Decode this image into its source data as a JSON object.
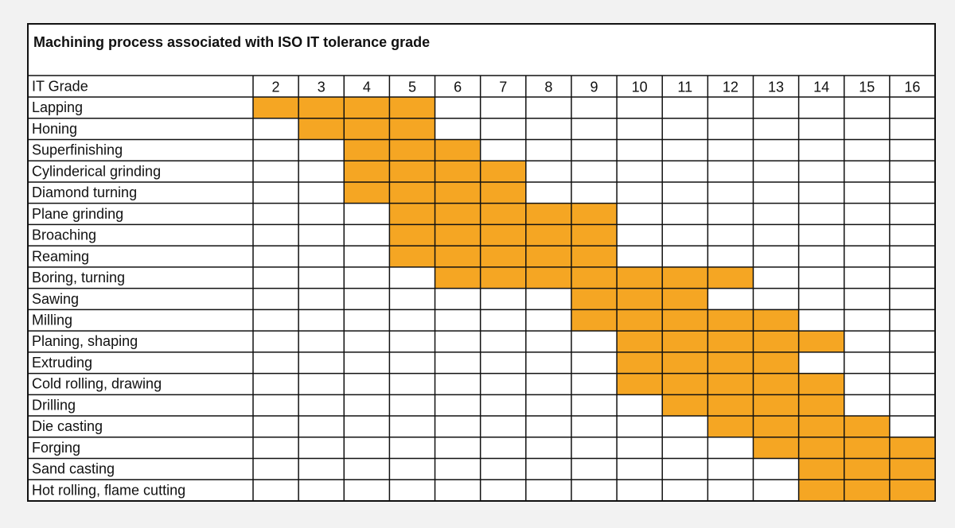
{
  "title": "Machining process associated with ISO IT tolerance grade",
  "table": {
    "header": "IT Grade",
    "grades": [
      2,
      3,
      4,
      5,
      6,
      7,
      8,
      9,
      10,
      11,
      12,
      13,
      14,
      15,
      16
    ],
    "rows": [
      {
        "process": "Lapping",
        "range": [
          2,
          5
        ]
      },
      {
        "process": "Honing",
        "range": [
          3,
          5
        ]
      },
      {
        "process": "Superfinishing",
        "range": [
          4,
          6
        ]
      },
      {
        "process": "Cylinderical grinding",
        "range": [
          4,
          7
        ]
      },
      {
        "process": "Diamond turning",
        "range": [
          4,
          7
        ]
      },
      {
        "process": "Plane grinding",
        "range": [
          5,
          9
        ]
      },
      {
        "process": "Broaching",
        "range": [
          5,
          9
        ]
      },
      {
        "process": "Reaming",
        "range": [
          5,
          9
        ]
      },
      {
        "process": "Boring, turning",
        "range": [
          6,
          12
        ]
      },
      {
        "process": "Sawing",
        "range": [
          9,
          11
        ]
      },
      {
        "process": "Milling",
        "range": [
          9,
          13
        ]
      },
      {
        "process": "Planing, shaping",
        "range": [
          10,
          14
        ]
      },
      {
        "process": "Extruding",
        "range": [
          10,
          13
        ]
      },
      {
        "process": "Cold rolling, drawing",
        "range": [
          10,
          14
        ]
      },
      {
        "process": "Drilling",
        "range": [
          11,
          14
        ]
      },
      {
        "process": "Die casting",
        "range": [
          12,
          15
        ]
      },
      {
        "process": "Forging",
        "range": [
          13,
          16
        ]
      },
      {
        "process": "Sand casting",
        "range": [
          14,
          16
        ]
      },
      {
        "process": "Hot rolling, flame cutting",
        "range": [
          14,
          16
        ]
      }
    ],
    "fill_color": "#f5a623"
  }
}
